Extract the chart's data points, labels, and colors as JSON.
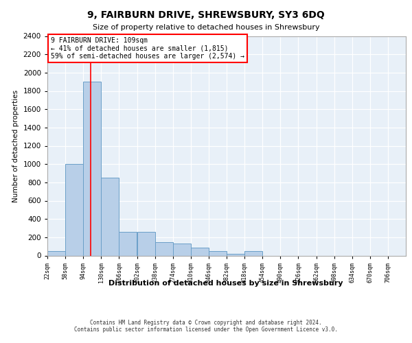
{
  "title": "9, FAIRBURN DRIVE, SHREWSBURY, SY3 6DQ",
  "subtitle": "Size of property relative to detached houses in Shrewsbury",
  "xlabel": "Distribution of detached houses by size in Shrewsbury",
  "ylabel": "Number of detached properties",
  "annotation_title": "9 FAIRBURN DRIVE: 109sqm",
  "annotation_line1": "← 41% of detached houses are smaller (1,815)",
  "annotation_line2": "59% of semi-detached houses are larger (2,574) →",
  "footer_line1": "Contains HM Land Registry data © Crown copyright and database right 2024.",
  "footer_line2": "Contains public sector information licensed under the Open Government Licence v3.0.",
  "bar_color": "#b8cfe8",
  "bar_edge_color": "#6a9fc8",
  "red_line_x": 109,
  "background_color": "#e8f0f8",
  "ylim": [
    0,
    2400
  ],
  "yticks": [
    0,
    200,
    400,
    600,
    800,
    1000,
    1200,
    1400,
    1600,
    1800,
    2000,
    2200,
    2400
  ],
  "bin_edges": [
    22,
    58,
    94,
    130,
    166,
    202,
    238,
    274,
    310,
    346,
    382,
    418,
    454,
    490,
    526,
    562,
    598,
    634,
    670,
    706,
    742
  ],
  "bin_values": [
    50,
    1000,
    1900,
    850,
    260,
    260,
    150,
    130,
    90,
    50,
    20,
    50,
    0,
    0,
    0,
    0,
    0,
    0,
    0,
    0
  ]
}
